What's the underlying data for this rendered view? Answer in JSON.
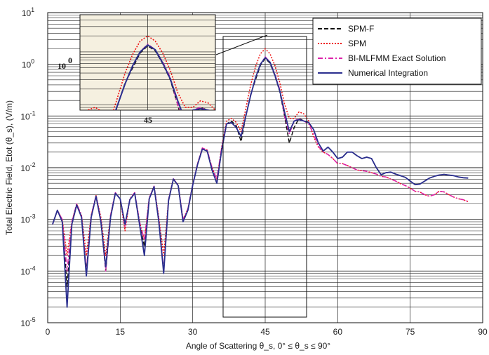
{
  "chart_data": {
    "type": "line",
    "xlabel": "Angle of Scattering θ_s, 0° ≤ θ_s ≤ 90°",
    "ylabel": "Total Electric Field, Etot (θ_s), (V/m)",
    "xlim": [
      0,
      90
    ],
    "ylim": [
      1e-05,
      10
    ],
    "yscale": "log",
    "x_ticks": [
      "0",
      "15",
      "30",
      "45",
      "60",
      "75",
      "90"
    ],
    "y_ticks": [
      "10^-5",
      "10^-4",
      "10^-3",
      "10^-2",
      "10^-1",
      "10^0",
      "10^1"
    ],
    "grid": true,
    "legend_position": "top-right",
    "series": [
      {
        "name": "SPM-F",
        "color": "#111111",
        "style": "dashed",
        "x": [
          1,
          2,
          3,
          4,
          5,
          6,
          7,
          8,
          9,
          10,
          11,
          12,
          13,
          14,
          15,
          16,
          17,
          18,
          19,
          20,
          21,
          22,
          23,
          24,
          25,
          26,
          27,
          28,
          29,
          30,
          31,
          32,
          33,
          34,
          35,
          36,
          37,
          38,
          39,
          40,
          41,
          42,
          43,
          44,
          45,
          46,
          47,
          48,
          49,
          50,
          51,
          52,
          53,
          54,
          55,
          56,
          57,
          58,
          59,
          60,
          61,
          62,
          63,
          64,
          65,
          66,
          67,
          68,
          69,
          70,
          71,
          72,
          73,
          74,
          75,
          76,
          77,
          78,
          79,
          80,
          81,
          82,
          83,
          84,
          85,
          86,
          87
        ],
        "y": [
          0.0008,
          0.0015,
          0.0009,
          5e-05,
          0.0008,
          0.0019,
          0.0011,
          0.0001,
          0.0011,
          0.0028,
          0.0009,
          0.0001,
          0.0011,
          0.0032,
          0.0025,
          0.0008,
          0.0024,
          0.0032,
          0.0008,
          0.0003,
          0.0025,
          0.0043,
          0.0009,
          0.0001,
          0.0023,
          0.006,
          0.0045,
          0.0009,
          0.0015,
          0.0046,
          0.0115,
          0.023,
          0.021,
          0.009,
          0.005,
          0.022,
          0.07,
          0.08,
          0.065,
          0.032,
          0.1,
          0.26,
          0.5,
          0.95,
          1.3,
          1.05,
          0.6,
          0.3,
          0.1,
          0.03,
          0.06,
          0.09,
          0.08,
          0.075,
          0.055,
          0.03,
          0.021,
          0.025,
          0.02,
          0.015,
          0.016,
          0.02,
          0.02,
          0.017,
          0.015,
          0.016,
          0.015,
          0.01,
          0.0073,
          0.008,
          0.0082,
          0.0075,
          0.007,
          0.0065,
          0.0055,
          0.0047,
          0.0048,
          0.0055,
          0.0063,
          0.0068,
          0.0072,
          0.0074,
          0.0072,
          0.007,
          0.0066,
          0.0064,
          0.0063
        ]
      },
      {
        "name": "SPM",
        "color": "#ee1111",
        "style": "dotted",
        "x": [
          1,
          2,
          3,
          4,
          5,
          6,
          7,
          8,
          9,
          10,
          11,
          12,
          13,
          14,
          15,
          16,
          17,
          18,
          19,
          20,
          21,
          22,
          23,
          24,
          25,
          26,
          27,
          28,
          29,
          30,
          31,
          32,
          33,
          34,
          35,
          36,
          37,
          38,
          39,
          40,
          41,
          42,
          43,
          44,
          45,
          46,
          47,
          48,
          49,
          50,
          51,
          52,
          53,
          54,
          55,
          56,
          57,
          58,
          59,
          60,
          61,
          62,
          63,
          64,
          65,
          66,
          67,
          68,
          69,
          70,
          71,
          72,
          73,
          74,
          75,
          76,
          77,
          78,
          79,
          80,
          81,
          82,
          83,
          84,
          85,
          86,
          87
        ],
        "y": [
          0.0008,
          0.0015,
          0.001,
          0.0002,
          0.0009,
          0.002,
          0.0012,
          0.0002,
          0.0012,
          0.0029,
          0.0011,
          0.0002,
          0.0012,
          0.0033,
          0.0025,
          0.0006,
          0.0025,
          0.0033,
          0.0009,
          0.0004,
          0.0026,
          0.0044,
          0.0011,
          0.0002,
          0.0024,
          0.0061,
          0.0046,
          0.001,
          0.0016,
          0.0047,
          0.012,
          0.024,
          0.022,
          0.01,
          0.006,
          0.025,
          0.08,
          0.09,
          0.075,
          0.05,
          0.14,
          0.4,
          0.9,
          1.6,
          2.0,
          1.6,
          0.95,
          0.45,
          0.17,
          0.09,
          0.09,
          0.12,
          0.11,
          0.08,
          0.04,
          0.025,
          0.02,
          0.018,
          0.015,
          0.012,
          0.012,
          0.011,
          0.01,
          0.009,
          0.0088,
          0.0085,
          0.008,
          0.0075,
          0.0068,
          0.0066,
          0.006,
          0.0055,
          0.0049,
          0.0045,
          0.004,
          0.0035,
          0.0034,
          0.003,
          0.0028,
          0.003,
          0.0035,
          0.0034,
          0.003,
          0.0027,
          0.0025,
          0.0024,
          0.0022
        ]
      },
      {
        "name": "BI-MLFMM Exact Solution",
        "color": "#dd22aa",
        "style": "dashdot",
        "x": [
          1,
          2,
          3,
          4,
          5,
          6,
          7,
          8,
          9,
          10,
          11,
          12,
          13,
          14,
          15,
          16,
          17,
          18,
          19,
          20,
          21,
          22,
          23,
          24,
          25,
          26,
          27,
          28,
          29,
          30,
          31,
          32,
          33,
          34,
          35,
          36,
          37,
          38,
          39,
          40,
          41,
          42,
          43,
          44,
          45,
          46,
          47,
          48,
          49,
          50,
          51,
          52,
          53,
          54,
          55,
          56,
          57,
          58,
          59,
          60,
          61,
          62,
          63,
          64,
          65,
          66,
          67,
          68,
          69,
          70,
          71,
          72,
          73,
          74,
          75,
          76,
          77,
          78,
          79,
          80,
          81,
          82,
          83,
          84,
          85,
          86,
          87
        ],
        "y": [
          0.0008,
          0.0015,
          0.001,
          0.0001,
          0.0009,
          0.002,
          0.0012,
          0.0001,
          0.0012,
          0.0029,
          0.001,
          0.0001,
          0.0012,
          0.0033,
          0.0025,
          0.0007,
          0.0025,
          0.0033,
          0.0009,
          0.0004,
          0.0026,
          0.0044,
          0.001,
          0.0001,
          0.0024,
          0.0061,
          0.0046,
          0.001,
          0.0016,
          0.0047,
          0.012,
          0.024,
          0.022,
          0.01,
          0.006,
          0.025,
          0.07,
          0.075,
          0.06,
          0.04,
          0.1,
          0.25,
          0.55,
          1.0,
          1.4,
          1.1,
          0.65,
          0.33,
          0.1,
          0.045,
          0.08,
          0.09,
          0.08,
          0.07,
          0.045,
          0.026,
          0.02,
          0.018,
          0.015,
          0.012,
          0.012,
          0.011,
          0.01,
          0.009,
          0.0088,
          0.0085,
          0.008,
          0.0075,
          0.0068,
          0.0066,
          0.006,
          0.0055,
          0.0049,
          0.0045,
          0.004,
          0.0035,
          0.0034,
          0.003,
          0.0028,
          0.003,
          0.0035,
          0.0034,
          0.003,
          0.0027,
          0.0025,
          0.0024,
          0.0022
        ]
      },
      {
        "name": "Numerical Integration",
        "color": "#2b2f8f",
        "style": "solid",
        "x": [
          1,
          2,
          3,
          4,
          5,
          6,
          7,
          8,
          9,
          10,
          11,
          12,
          13,
          14,
          15,
          16,
          17,
          18,
          19,
          20,
          21,
          22,
          23,
          24,
          25,
          26,
          27,
          28,
          29,
          30,
          31,
          32,
          33,
          34,
          35,
          36,
          37,
          38,
          39,
          40,
          41,
          42,
          43,
          44,
          45,
          46,
          47,
          48,
          49,
          50,
          51,
          52,
          53,
          54,
          55,
          56,
          57,
          58,
          59,
          60,
          61,
          62,
          63,
          64,
          65,
          66,
          67,
          68,
          69,
          70,
          71,
          72,
          73,
          74,
          75,
          76,
          77,
          78,
          79,
          80,
          81,
          82,
          83,
          84,
          85,
          86,
          87
        ],
        "y": [
          0.0008,
          0.0015,
          0.0009,
          2e-05,
          0.0008,
          0.0019,
          0.0011,
          8e-05,
          0.0011,
          0.0028,
          0.0009,
          0.00012,
          0.0011,
          0.0032,
          0.0025,
          0.0008,
          0.0024,
          0.0032,
          0.0008,
          0.0002,
          0.0025,
          0.0043,
          0.0009,
          9e-05,
          0.0023,
          0.006,
          0.0045,
          0.0009,
          0.0015,
          0.0046,
          0.0115,
          0.023,
          0.021,
          0.009,
          0.005,
          0.022,
          0.07,
          0.075,
          0.06,
          0.04,
          0.1,
          0.25,
          0.55,
          1.0,
          1.35,
          1.1,
          0.62,
          0.31,
          0.12,
          0.05,
          0.08,
          0.085,
          0.08,
          0.075,
          0.055,
          0.03,
          0.021,
          0.025,
          0.02,
          0.015,
          0.016,
          0.02,
          0.02,
          0.017,
          0.015,
          0.016,
          0.015,
          0.01,
          0.0073,
          0.008,
          0.0082,
          0.0075,
          0.007,
          0.0065,
          0.0055,
          0.0047,
          0.0048,
          0.0055,
          0.0063,
          0.0068,
          0.0072,
          0.0074,
          0.0072,
          0.007,
          0.0066,
          0.0064,
          0.0063
        ]
      }
    ],
    "inset": {
      "xlim": [
        36,
        54
      ],
      "ylim": [
        0.08,
        5
      ],
      "x_tick_label": "45",
      "y_tick_label": "10^0",
      "background": "#f5f0e0"
    }
  }
}
